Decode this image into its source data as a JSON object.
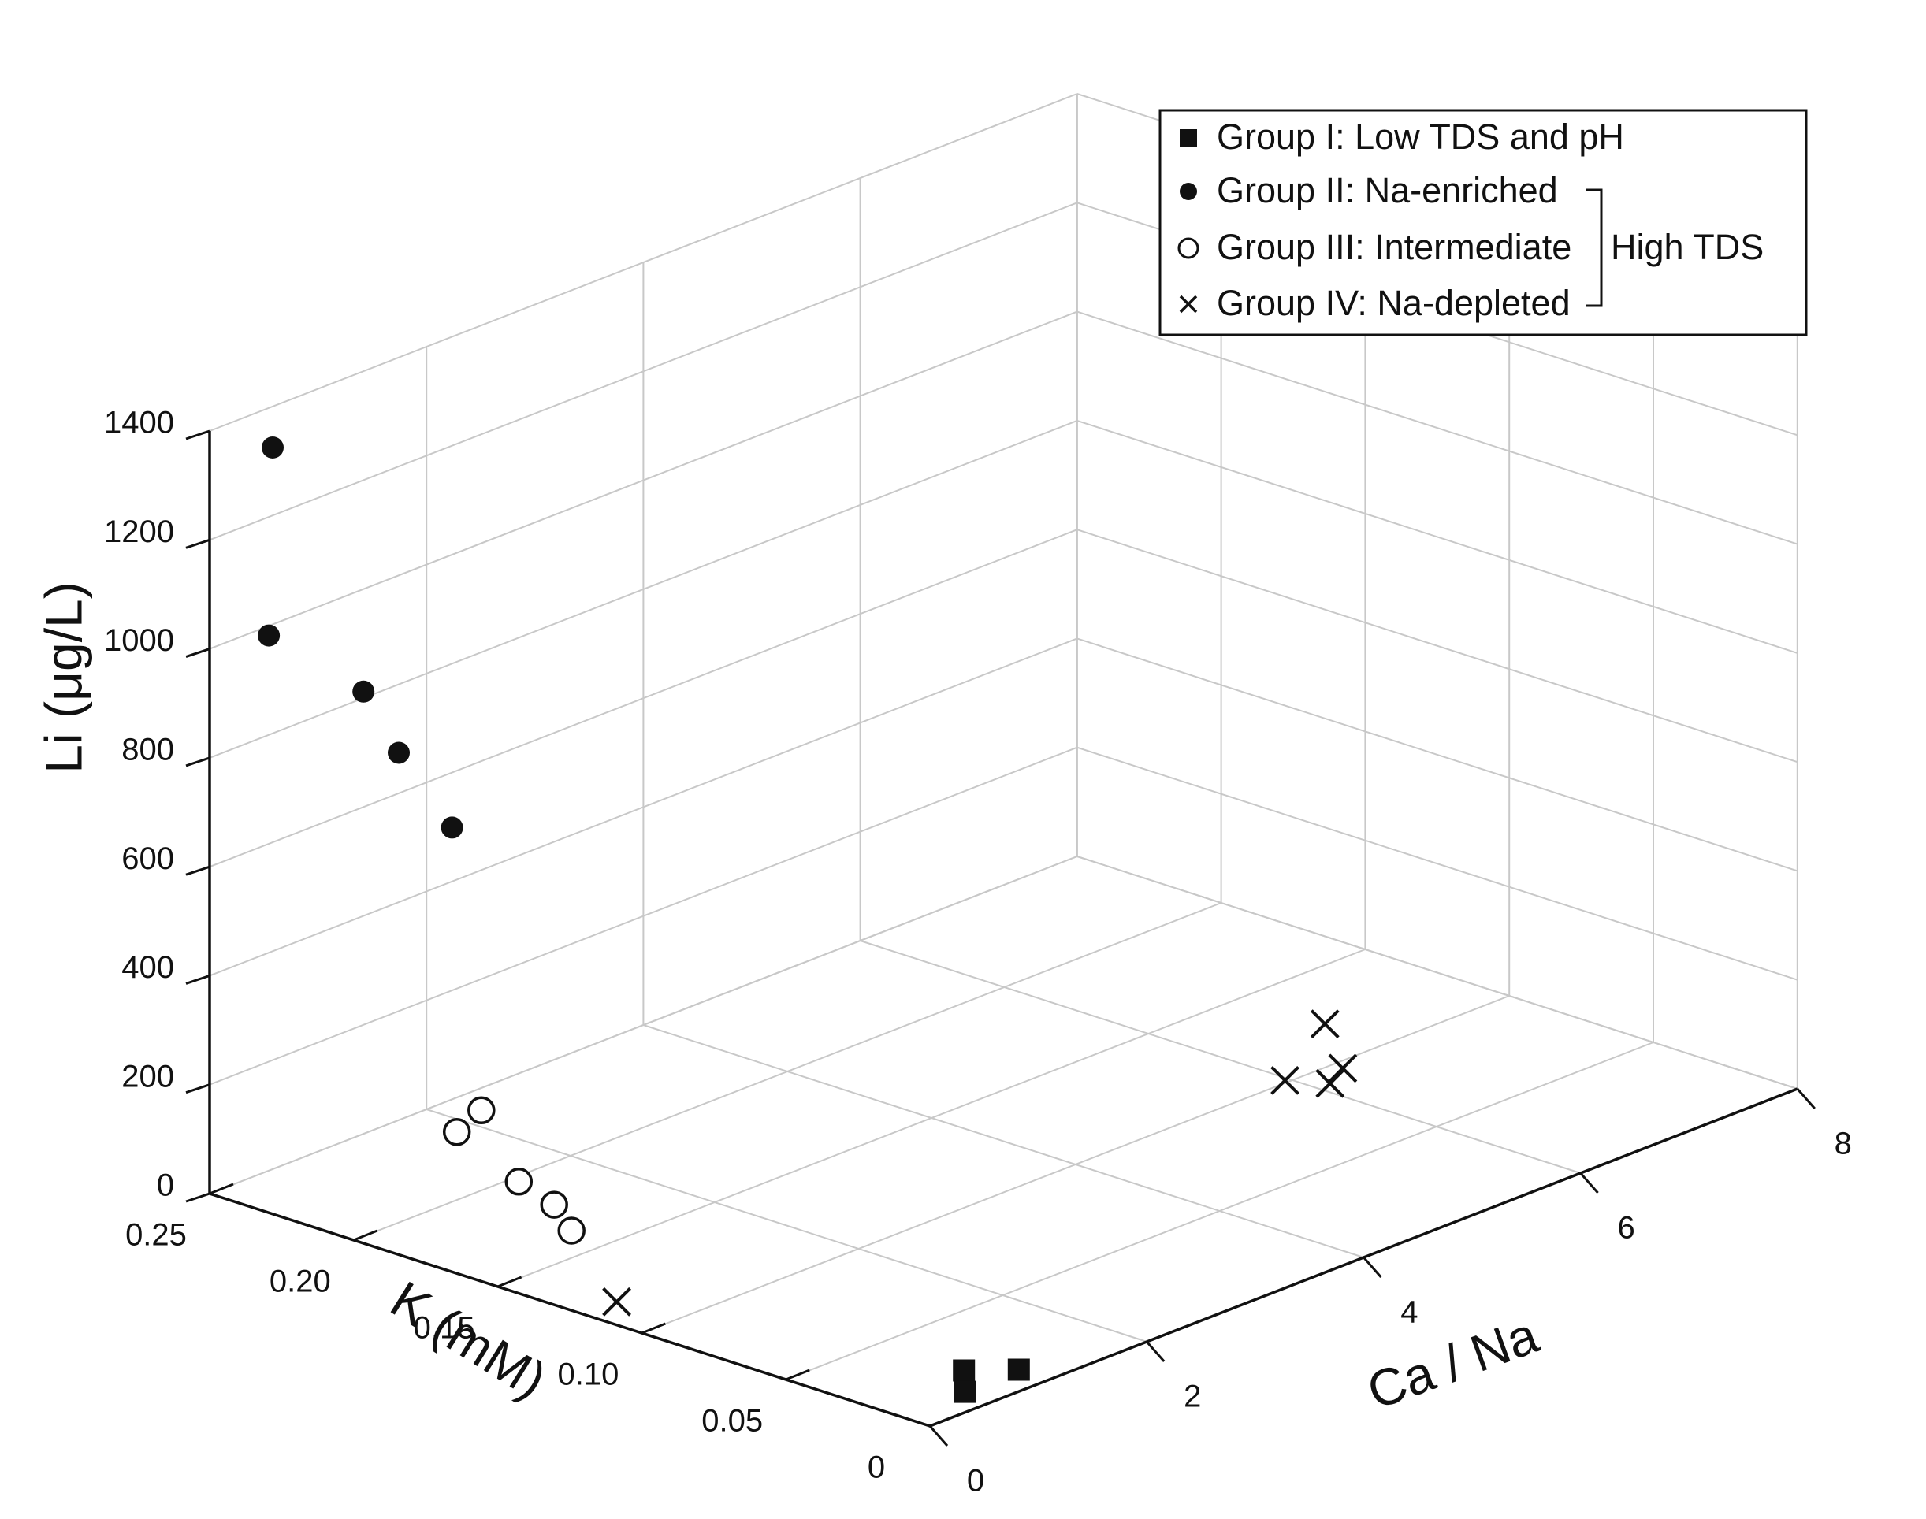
{
  "chart_data": {
    "type": "scatter",
    "x_axis": {
      "label": "Ca / Na",
      "range": [
        0,
        8
      ],
      "ticks": [
        "0",
        "2",
        "4",
        "6",
        "8"
      ]
    },
    "y_axis": {
      "label": "K (mM)",
      "range": [
        0,
        0.25
      ],
      "ticks": [
        "0",
        "0.05",
        "0.10",
        "0.15",
        "0.20",
        "0.25"
      ]
    },
    "z_axis": {
      "label": "Li (μg/L)",
      "range": [
        0,
        1400
      ],
      "ticks": [
        "0",
        "200",
        "400",
        "600",
        "800",
        "1000",
        "1200",
        "1400"
      ]
    },
    "grid": true,
    "legend_position": "top-right",
    "legend_group_label": "High TDS",
    "series": [
      {
        "name": "Group I: Low TDS and pH",
        "marker": "filled-square",
        "color": "#111111",
        "points": [
          {
            "x": 0.82,
            "y": 0.0,
            "z": 40
          },
          {
            "x": 0.58,
            "y": 0.01,
            "z": 40
          },
          {
            "x": 0.59,
            "y": 0.01,
            "z": 0
          }
        ]
      },
      {
        "name": "Group II: Na-enriched",
        "marker": "filled-circle",
        "color": "#111111",
        "points": [
          {
            "x": 0.05,
            "y": 0.23,
            "z": 1400
          },
          {
            "x": 0.09,
            "y": 0.2,
            "z": 1000
          },
          {
            "x": 0.28,
            "y": 0.24,
            "z": 1020
          },
          {
            "x": 0.15,
            "y": 0.19,
            "z": 900
          },
          {
            "x": 0.11,
            "y": 0.17,
            "z": 800
          }
        ]
      },
      {
        "name": "Group III: Intermediate",
        "marker": "open-circle",
        "color": "#111111",
        "points": [
          {
            "x": 0.38,
            "y": 0.17,
            "z": 260
          },
          {
            "x": 0.42,
            "y": 0.18,
            "z": 200
          },
          {
            "x": 0.46,
            "y": 0.16,
            "z": 140
          },
          {
            "x": 0.52,
            "y": 0.15,
            "z": 110
          },
          {
            "x": 0.68,
            "y": 0.15,
            "z": 50
          }
        ]
      },
      {
        "name": "Group IV: Na-depleted",
        "marker": "cross",
        "color": "#111111",
        "points": [
          {
            "x": 0.3,
            "y": 0.12,
            "z": 0
          },
          {
            "x": 5.4,
            "y": 0.08,
            "z": 80
          },
          {
            "x": 5.55,
            "y": 0.07,
            "z": 80
          },
          {
            "x": 5.8,
            "y": 0.075,
            "z": 80
          },
          {
            "x": 6.3,
            "y": 0.1,
            "z": 80
          }
        ]
      }
    ]
  }
}
